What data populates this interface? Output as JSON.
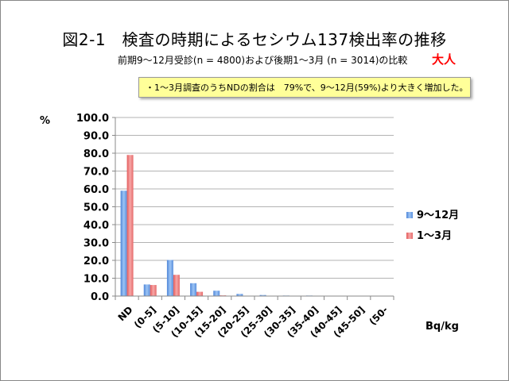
{
  "title": "図2-1　検査の時期によるセシウム137検出率の推移",
  "subtitle": "前期9～12月受診(n = 4800)および後期1～3月 (n = 3014)の比較",
  "adult_label": "大人",
  "note": "・1～3月調査のうちNDの割合は　79%で、9～12月(59%)より大きく増加した。",
  "percent_label": "%",
  "unit_label": "Bq/kg",
  "chart_data": {
    "type": "bar",
    "title": "",
    "ylabel": "%",
    "xlabel": "Bq/kg",
    "ylim": [
      0,
      100
    ],
    "ytick_step": 10,
    "grid": true,
    "legend_position": "right",
    "categories": [
      "ND",
      "(0-5]",
      "(5-10]",
      "(10-15]",
      "(15-20]",
      "(20-25]",
      "(25-30]",
      "(30-35]",
      "(35-40]",
      "(40-45]",
      "(45-50]",
      "(50-"
    ],
    "series": [
      {
        "name": "9～12月",
        "color": "#6fa8ee",
        "values": [
          59.0,
          6.5,
          20.2,
          7.2,
          3.0,
          1.2,
          0.6,
          0.3,
          0.3,
          0.2,
          0.1,
          0.2
        ]
      },
      {
        "name": "1～3月",
        "color": "#f08080",
        "values": [
          79.0,
          6.2,
          11.9,
          2.4,
          0.4,
          0.1,
          0.1,
          0.0,
          0.0,
          0.0,
          0.0,
          0.0
        ]
      }
    ]
  }
}
